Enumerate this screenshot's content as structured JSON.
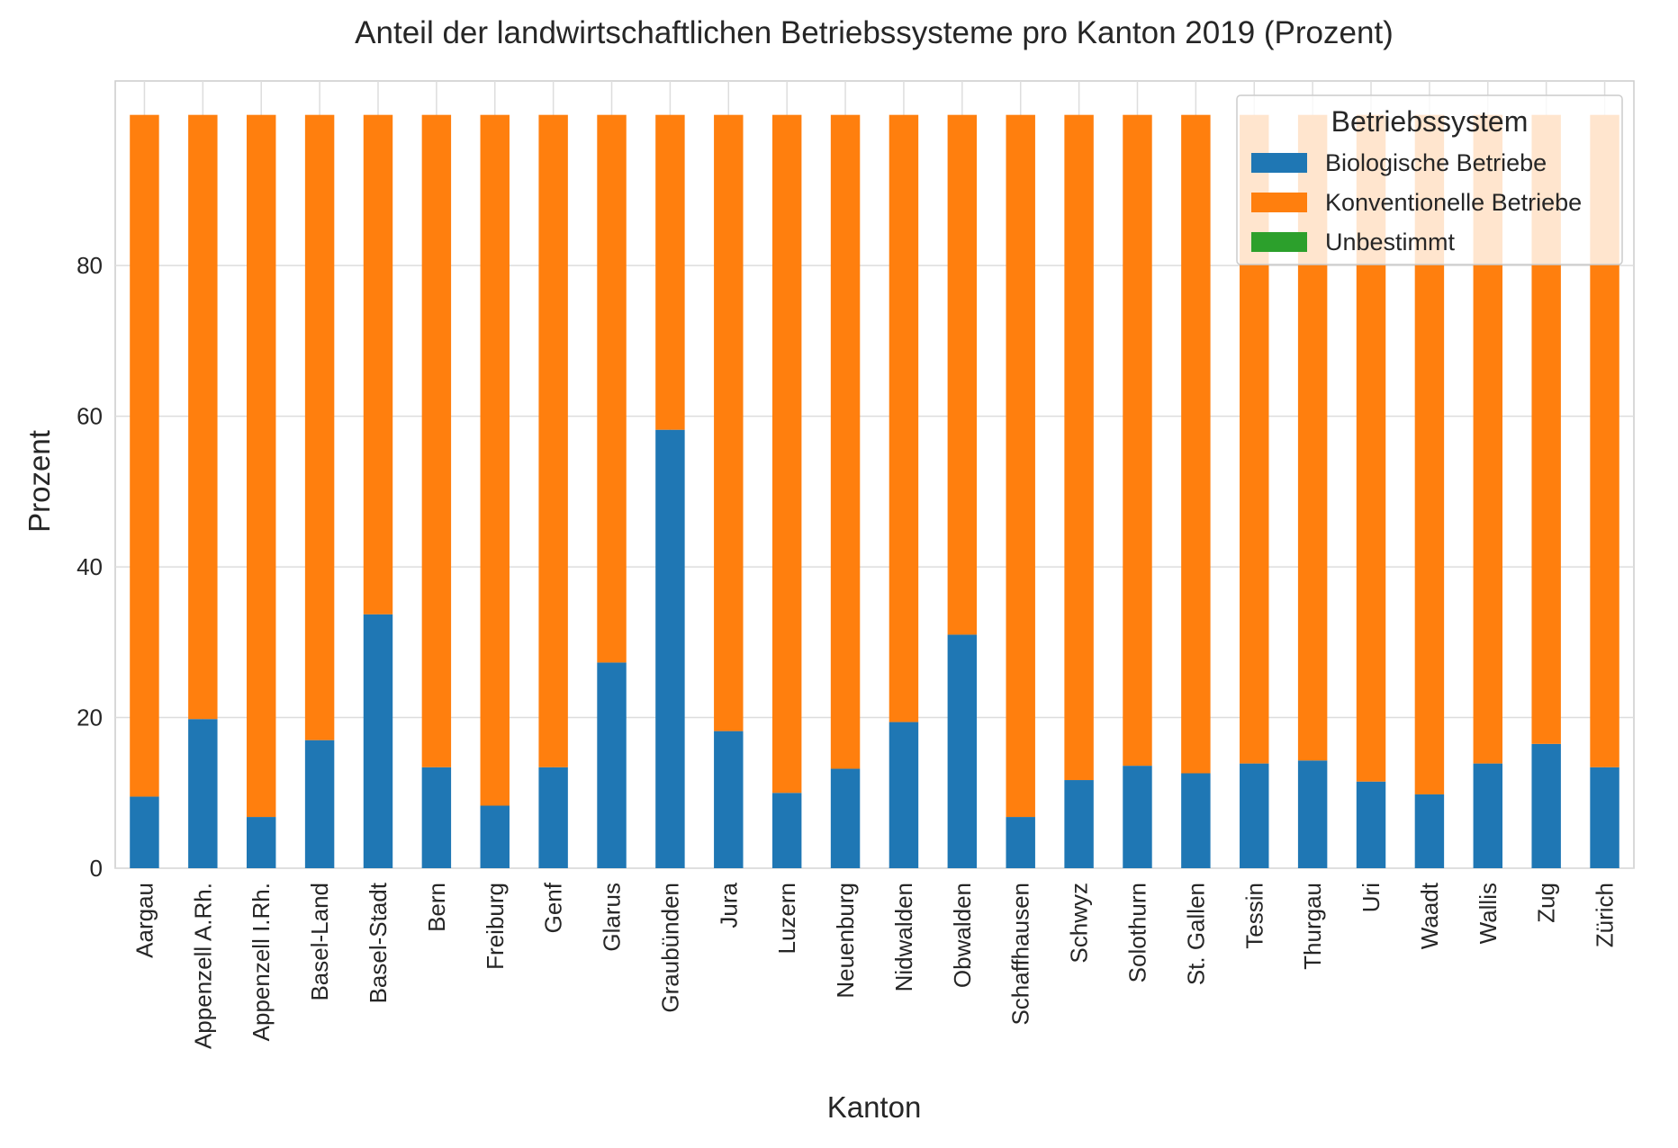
{
  "chart_data": {
    "type": "bar",
    "stacked": true,
    "title": "Anteil der landwirtschaftlichen Betriebssysteme pro Kanton 2019 (Prozent)",
    "xlabel": "Kanton",
    "ylabel": "Prozent",
    "ylim": [
      0,
      104.5
    ],
    "yticks": [
      0,
      20,
      40,
      60,
      80
    ],
    "grid": true,
    "legend": {
      "title": "Betriebssystem",
      "placement": "top-right"
    },
    "categories": [
      "Aargau",
      "Appenzell A.Rh.",
      "Appenzell I.Rh.",
      "Basel-Land",
      "Basel-Stadt",
      "Bern",
      "Freiburg",
      "Genf",
      "Glarus",
      "Graubünden",
      "Jura",
      "Luzern",
      "Neuenburg",
      "Nidwalden",
      "Obwalden",
      "Schaffhausen",
      "Schwyz",
      "Solothurn",
      "St. Gallen",
      "Tessin",
      "Thurgau",
      "Uri",
      "Waadt",
      "Wallis",
      "Zug",
      "Zürich"
    ],
    "series": [
      {
        "name": "Biologische Betriebe",
        "color": "#1f77b4",
        "values": [
          9.5,
          19.8,
          6.8,
          17.0,
          33.7,
          13.4,
          8.3,
          13.4,
          27.3,
          58.2,
          18.2,
          10.0,
          13.2,
          19.4,
          31.0,
          6.8,
          11.7,
          13.6,
          12.6,
          13.9,
          14.3,
          11.5,
          9.8,
          13.9,
          16.5,
          13.4
        ]
      },
      {
        "name": "Konventionelle Betriebe",
        "color": "#ff7f0e",
        "values": [
          90.5,
          80.2,
          93.2,
          83.0,
          66.3,
          86.6,
          91.7,
          86.6,
          72.7,
          41.8,
          81.8,
          90.0,
          86.8,
          80.6,
          69.0,
          93.2,
          88.3,
          86.4,
          87.4,
          86.1,
          85.7,
          88.5,
          90.2,
          86.1,
          83.5,
          86.6
        ]
      },
      {
        "name": "Unbestimmt",
        "color": "#2ca02c",
        "values": [
          0,
          0,
          0,
          0,
          0,
          0,
          0,
          0,
          0,
          0,
          0,
          0,
          0,
          0,
          0,
          0,
          0,
          0,
          0,
          0,
          0,
          0,
          0,
          0,
          0,
          0
        ]
      }
    ]
  }
}
